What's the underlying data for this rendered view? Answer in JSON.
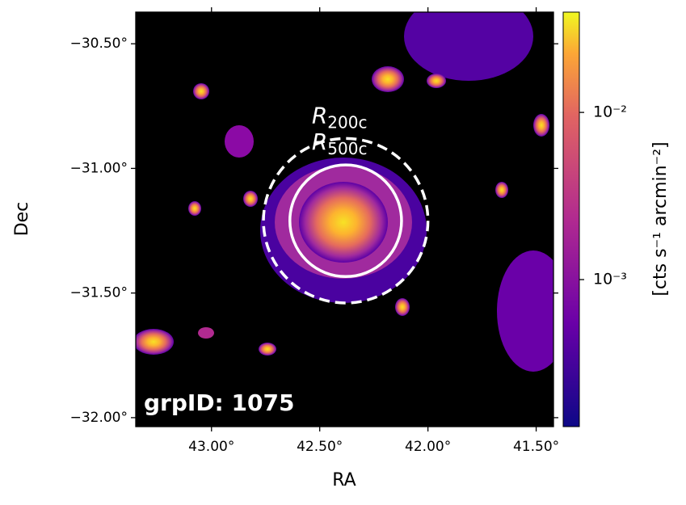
{
  "chart_data": {
    "type": "image",
    "x_label": "RA",
    "y_label": "Dec",
    "xlim": [
      43.35,
      41.42
    ],
    "ylim": [
      -32.036,
      -30.373
    ],
    "xticks": [
      {
        "value": 43.0,
        "label": "43.00°"
      },
      {
        "value": 42.5,
        "label": "42.50°"
      },
      {
        "value": 42.0,
        "label": "42.00°"
      },
      {
        "value": 41.5,
        "label": "41.50°"
      }
    ],
    "yticks": [
      {
        "value": -30.5,
        "label": "−30.50°"
      },
      {
        "value": -31.0,
        "label": "−31.00°"
      },
      {
        "value": -31.5,
        "label": "−31.50°"
      },
      {
        "value": -32.0,
        "label": "−32.00°"
      }
    ],
    "colorbar": {
      "label": "[cts s⁻¹ arcmin⁻²]",
      "scale": "log",
      "lim": [
        0.000132,
        0.0398
      ],
      "ticks": [
        {
          "value": 0.01,
          "label": "10⁻²"
        },
        {
          "value": 0.001,
          "label": "10⁻³"
        }
      ]
    },
    "center": [
      42.38,
      -31.21
    ],
    "circles": [
      {
        "name": "R",
        "subscript": "200c",
        "radius": 0.33,
        "style": "dashed"
      },
      {
        "name": "R",
        "subscript": "500c",
        "radius": 0.224,
        "style": "solid"
      }
    ],
    "annotation": "grpID: 1075"
  }
}
